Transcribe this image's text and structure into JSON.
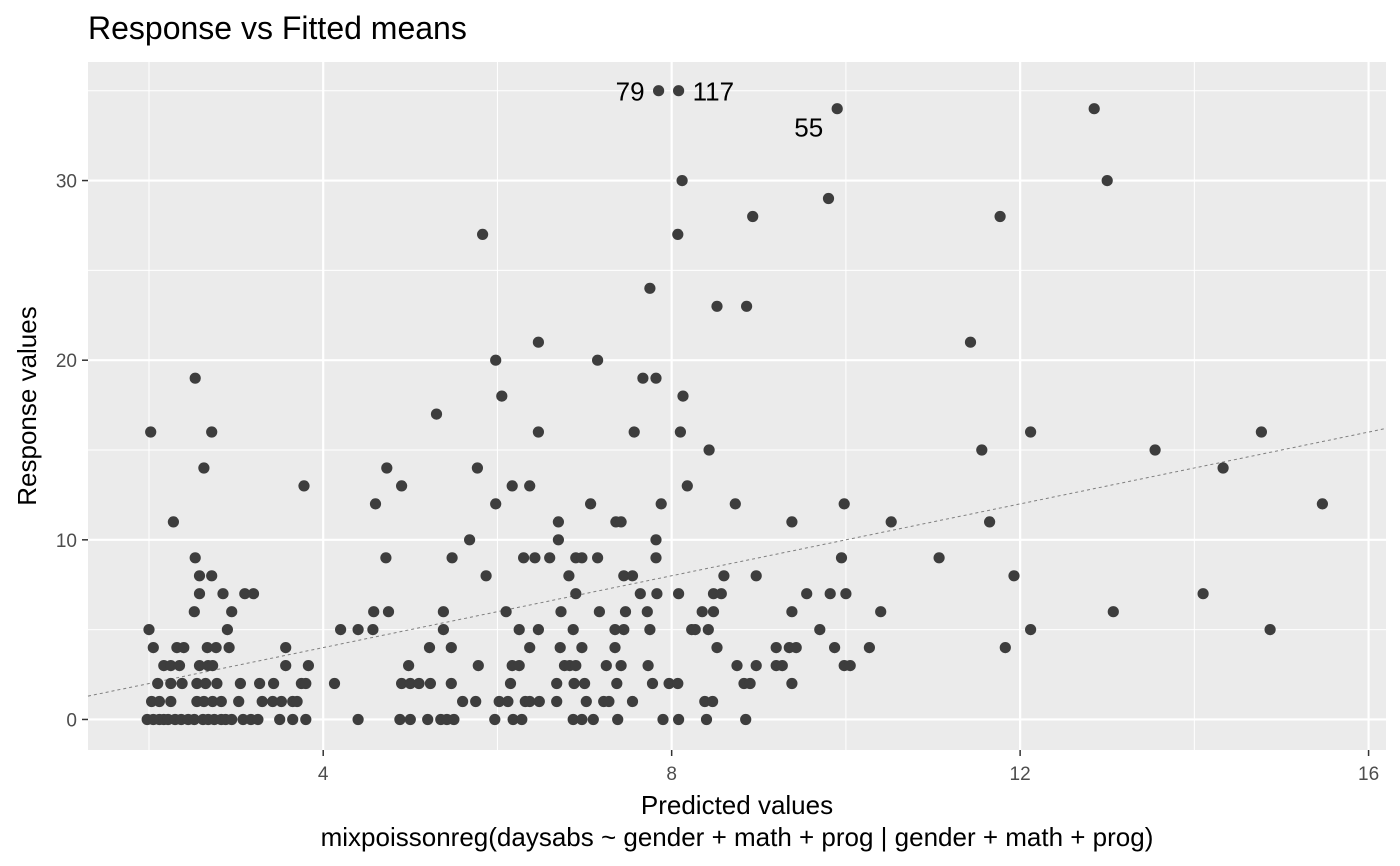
{
  "chart_data": {
    "type": "scatter",
    "title": "Response vs Fitted means",
    "xlabel": "Predicted values",
    "caption": "mixpoissonreg(daysabs ~ gender + math + prog | gender + math + prog)",
    "ylabel": "Response values",
    "xlim": [
      1.3,
      16.2
    ],
    "ylim": [
      -1.7,
      36.6
    ],
    "x_ticks": [
      4,
      8,
      12,
      16
    ],
    "y_ticks": [
      0,
      10,
      20,
      30
    ],
    "grid": true,
    "colors": {
      "panel": "#ebebeb",
      "grid": "#ffffff",
      "point": "#3d3d3d",
      "reference_line": "#7f7f7f"
    },
    "reference_line": {
      "style": "dashed",
      "from": [
        1.3,
        1.3
      ],
      "to": [
        16.2,
        16.2
      ]
    },
    "annotations": [
      {
        "label": "79",
        "x": 7.85,
        "y": 35
      },
      {
        "label": "117",
        "x": 8.08,
        "y": 35
      },
      {
        "label": "55",
        "x": 9.9,
        "y": 34
      }
    ],
    "points": [
      [
        7.85,
        35
      ],
      [
        8.08,
        35
      ],
      [
        9.9,
        34
      ],
      [
        12.85,
        34
      ],
      [
        13.0,
        30
      ],
      [
        8.12,
        30
      ],
      [
        9.8,
        29
      ],
      [
        8.93,
        28
      ],
      [
        11.77,
        28
      ],
      [
        5.83,
        27
      ],
      [
        8.07,
        27
      ],
      [
        7.75,
        24
      ],
      [
        8.52,
        23
      ],
      [
        8.86,
        23
      ],
      [
        6.47,
        21
      ],
      [
        11.43,
        21
      ],
      [
        5.98,
        20
      ],
      [
        7.15,
        20
      ],
      [
        2.53,
        19
      ],
      [
        7.67,
        19
      ],
      [
        7.82,
        19
      ],
      [
        6.05,
        18
      ],
      [
        8.13,
        18
      ],
      [
        5.3,
        17
      ],
      [
        2.02,
        16
      ],
      [
        2.72,
        16
      ],
      [
        6.47,
        16
      ],
      [
        7.57,
        16
      ],
      [
        8.1,
        16
      ],
      [
        12.12,
        16
      ],
      [
        14.77,
        16
      ],
      [
        8.43,
        15
      ],
      [
        11.56,
        15
      ],
      [
        13.55,
        15
      ],
      [
        2.63,
        14
      ],
      [
        4.73,
        14
      ],
      [
        5.77,
        14
      ],
      [
        14.33,
        14
      ],
      [
        3.78,
        13
      ],
      [
        4.9,
        13
      ],
      [
        6.17,
        13
      ],
      [
        6.37,
        13
      ],
      [
        8.18,
        13
      ],
      [
        4.6,
        12
      ],
      [
        5.98,
        12
      ],
      [
        7.07,
        12
      ],
      [
        7.88,
        12
      ],
      [
        8.73,
        12
      ],
      [
        9.98,
        12
      ],
      [
        15.47,
        12
      ],
      [
        2.28,
        11
      ],
      [
        6.7,
        11
      ],
      [
        7.36,
        11
      ],
      [
        7.42,
        11
      ],
      [
        9.38,
        11
      ],
      [
        10.52,
        11
      ],
      [
        11.65,
        11
      ],
      [
        5.68,
        10
      ],
      [
        6.7,
        10
      ],
      [
        7.82,
        10
      ],
      [
        2.53,
        9
      ],
      [
        4.72,
        9
      ],
      [
        5.48,
        9
      ],
      [
        6.3,
        9
      ],
      [
        6.43,
        9
      ],
      [
        6.6,
        9
      ],
      [
        6.9,
        9
      ],
      [
        6.97,
        9
      ],
      [
        7.15,
        9
      ],
      [
        7.82,
        9
      ],
      [
        9.95,
        9
      ],
      [
        11.07,
        9
      ],
      [
        2.58,
        8
      ],
      [
        2.72,
        8
      ],
      [
        5.87,
        8
      ],
      [
        6.82,
        8
      ],
      [
        7.45,
        8
      ],
      [
        7.55,
        8
      ],
      [
        8.6,
        8
      ],
      [
        8.97,
        8
      ],
      [
        11.93,
        8
      ],
      [
        2.58,
        7
      ],
      [
        2.85,
        7
      ],
      [
        3.1,
        7
      ],
      [
        3.2,
        7
      ],
      [
        6.9,
        7
      ],
      [
        7.64,
        7
      ],
      [
        7.83,
        7
      ],
      [
        8.08,
        7
      ],
      [
        8.48,
        7
      ],
      [
        8.57,
        7
      ],
      [
        9.55,
        7
      ],
      [
        9.82,
        7
      ],
      [
        10.0,
        7
      ],
      [
        14.1,
        7
      ],
      [
        2.52,
        6
      ],
      [
        2.95,
        6
      ],
      [
        4.58,
        6
      ],
      [
        4.75,
        6
      ],
      [
        5.38,
        6
      ],
      [
        6.1,
        6
      ],
      [
        6.73,
        6
      ],
      [
        7.17,
        6
      ],
      [
        7.47,
        6
      ],
      [
        7.72,
        6
      ],
      [
        8.35,
        6
      ],
      [
        8.48,
        6
      ],
      [
        9.38,
        6
      ],
      [
        10.4,
        6
      ],
      [
        13.07,
        6
      ],
      [
        2.0,
        5
      ],
      [
        2.9,
        5
      ],
      [
        4.2,
        5
      ],
      [
        4.4,
        5
      ],
      [
        4.57,
        5
      ],
      [
        5.38,
        5
      ],
      [
        6.25,
        5
      ],
      [
        6.47,
        5
      ],
      [
        6.87,
        5
      ],
      [
        7.35,
        5
      ],
      [
        7.45,
        5
      ],
      [
        7.75,
        5
      ],
      [
        8.23,
        5
      ],
      [
        8.27,
        5
      ],
      [
        8.42,
        5
      ],
      [
        9.7,
        5
      ],
      [
        12.12,
        5
      ],
      [
        14.87,
        5
      ],
      [
        2.05,
        4
      ],
      [
        2.32,
        4
      ],
      [
        2.4,
        4
      ],
      [
        2.67,
        4
      ],
      [
        2.77,
        4
      ],
      [
        2.92,
        4
      ],
      [
        3.57,
        4
      ],
      [
        5.22,
        4
      ],
      [
        5.47,
        4
      ],
      [
        6.37,
        4
      ],
      [
        6.72,
        4
      ],
      [
        6.97,
        4
      ],
      [
        7.35,
        4
      ],
      [
        8.52,
        4
      ],
      [
        9.2,
        4
      ],
      [
        9.35,
        4
      ],
      [
        9.43,
        4
      ],
      [
        9.87,
        4
      ],
      [
        10.27,
        4
      ],
      [
        11.83,
        4
      ],
      [
        2.17,
        3
      ],
      [
        2.25,
        3
      ],
      [
        2.35,
        3
      ],
      [
        2.58,
        3
      ],
      [
        2.68,
        3
      ],
      [
        2.73,
        3
      ],
      [
        3.57,
        3
      ],
      [
        3.83,
        3
      ],
      [
        4.98,
        3
      ],
      [
        5.78,
        3
      ],
      [
        6.17,
        3
      ],
      [
        6.25,
        3
      ],
      [
        6.77,
        3
      ],
      [
        6.83,
        3
      ],
      [
        6.9,
        3
      ],
      [
        7.25,
        3
      ],
      [
        7.42,
        3
      ],
      [
        7.73,
        3
      ],
      [
        8.75,
        3
      ],
      [
        8.97,
        3
      ],
      [
        9.2,
        3
      ],
      [
        9.27,
        3
      ],
      [
        9.98,
        3
      ],
      [
        10.05,
        3
      ],
      [
        2.1,
        2
      ],
      [
        2.25,
        2
      ],
      [
        2.38,
        2
      ],
      [
        2.55,
        2
      ],
      [
        2.65,
        2
      ],
      [
        2.78,
        2
      ],
      [
        3.05,
        2
      ],
      [
        3.27,
        2
      ],
      [
        3.43,
        2
      ],
      [
        3.75,
        2
      ],
      [
        3.8,
        2
      ],
      [
        4.13,
        2
      ],
      [
        4.9,
        2
      ],
      [
        5.0,
        2
      ],
      [
        5.1,
        2
      ],
      [
        5.23,
        2
      ],
      [
        5.47,
        2
      ],
      [
        6.15,
        2
      ],
      [
        6.68,
        2
      ],
      [
        6.88,
        2
      ],
      [
        7.0,
        2
      ],
      [
        7.37,
        2
      ],
      [
        7.78,
        2
      ],
      [
        7.97,
        2
      ],
      [
        8.07,
        2
      ],
      [
        8.83,
        2
      ],
      [
        8.9,
        2
      ],
      [
        9.38,
        2
      ],
      [
        2.03,
        1
      ],
      [
        2.12,
        1
      ],
      [
        2.25,
        1
      ],
      [
        2.55,
        1
      ],
      [
        2.63,
        1
      ],
      [
        2.73,
        1
      ],
      [
        2.83,
        1
      ],
      [
        3.03,
        1
      ],
      [
        3.3,
        1
      ],
      [
        3.42,
        1
      ],
      [
        3.52,
        1
      ],
      [
        3.65,
        1
      ],
      [
        3.7,
        1
      ],
      [
        5.6,
        1
      ],
      [
        5.75,
        1
      ],
      [
        6.02,
        1
      ],
      [
        6.12,
        1
      ],
      [
        6.32,
        1
      ],
      [
        6.37,
        1
      ],
      [
        6.48,
        1
      ],
      [
        6.68,
        1
      ],
      [
        7.02,
        1
      ],
      [
        7.22,
        1
      ],
      [
        7.28,
        1
      ],
      [
        7.55,
        1
      ],
      [
        8.38,
        1
      ],
      [
        8.47,
        1
      ],
      [
        1.98,
        0
      ],
      [
        2.05,
        0
      ],
      [
        2.12,
        0
      ],
      [
        2.17,
        0
      ],
      [
        2.22,
        0
      ],
      [
        2.3,
        0
      ],
      [
        2.37,
        0
      ],
      [
        2.45,
        0
      ],
      [
        2.52,
        0
      ],
      [
        2.62,
        0
      ],
      [
        2.68,
        0
      ],
      [
        2.75,
        0
      ],
      [
        2.83,
        0
      ],
      [
        2.88,
        0
      ],
      [
        2.95,
        0
      ],
      [
        3.08,
        0
      ],
      [
        3.17,
        0
      ],
      [
        3.25,
        0
      ],
      [
        3.5,
        0
      ],
      [
        3.65,
        0
      ],
      [
        3.8,
        0
      ],
      [
        4.4,
        0
      ],
      [
        4.88,
        0
      ],
      [
        5.0,
        0
      ],
      [
        5.2,
        0
      ],
      [
        5.35,
        0
      ],
      [
        5.42,
        0
      ],
      [
        5.5,
        0
      ],
      [
        5.97,
        0
      ],
      [
        6.18,
        0
      ],
      [
        6.28,
        0
      ],
      [
        6.87,
        0
      ],
      [
        6.97,
        0
      ],
      [
        7.1,
        0
      ],
      [
        7.38,
        0
      ],
      [
        7.9,
        0
      ],
      [
        8.08,
        0
      ],
      [
        8.4,
        0
      ],
      [
        8.85,
        0
      ]
    ]
  }
}
